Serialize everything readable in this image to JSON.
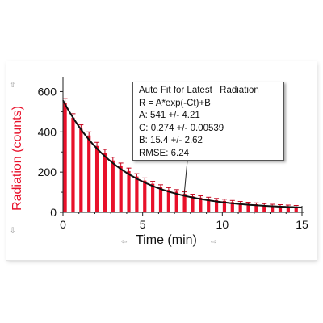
{
  "chart_data": {
    "type": "bar",
    "title": "",
    "xlabel": "Time (min)",
    "ylabel": "Radiation (counts)",
    "xlim": [
      0,
      15
    ],
    "ylim": [
      0,
      650
    ],
    "x_ticks": [
      "0",
      "5",
      "10",
      "15"
    ],
    "y_ticks": [
      "0",
      "200",
      "400",
      "600"
    ],
    "grid": false,
    "bar_color": "#e8102a",
    "fit_color": "#111111",
    "series": [
      {
        "x": [
          0,
          0.5,
          1,
          1.5,
          2,
          2.5,
          3,
          3.5,
          4,
          4.5,
          5,
          5.5,
          6,
          6.5,
          7,
          7.5,
          8,
          8.5,
          9,
          9.5,
          10,
          10.5,
          11,
          11.5,
          12,
          12.5,
          13,
          13.5,
          14,
          14.5
        ],
        "values": [
          545,
          470,
          415,
          382,
          330,
          296,
          258,
          230,
          205,
          178,
          158,
          142,
          125,
          112,
          103,
          92,
          80,
          73,
          67,
          61,
          57,
          51,
          47,
          43,
          40,
          36,
          34,
          32,
          30,
          28
        ],
        "error": [
          20,
          20,
          20,
          18,
          18,
          17,
          16,
          15,
          15,
          14,
          13,
          12,
          12,
          11,
          10,
          10,
          10,
          9,
          8,
          8,
          8,
          8,
          7,
          7,
          7,
          7,
          6,
          6,
          6,
          6
        ]
      }
    ],
    "fit": {
      "A": 541,
      "C": 0.274,
      "B": 15.4
    }
  },
  "fit_box": {
    "lines": [
      "Auto Fit for  Latest | Radiation",
      "R = A*exp(-Ct)+B",
      "A: 541 +/- 4.21",
      "C: 0.274 +/- 0.00539",
      "B: 15.4 +/- 2.62",
      "RMSE: 6.24"
    ]
  }
}
